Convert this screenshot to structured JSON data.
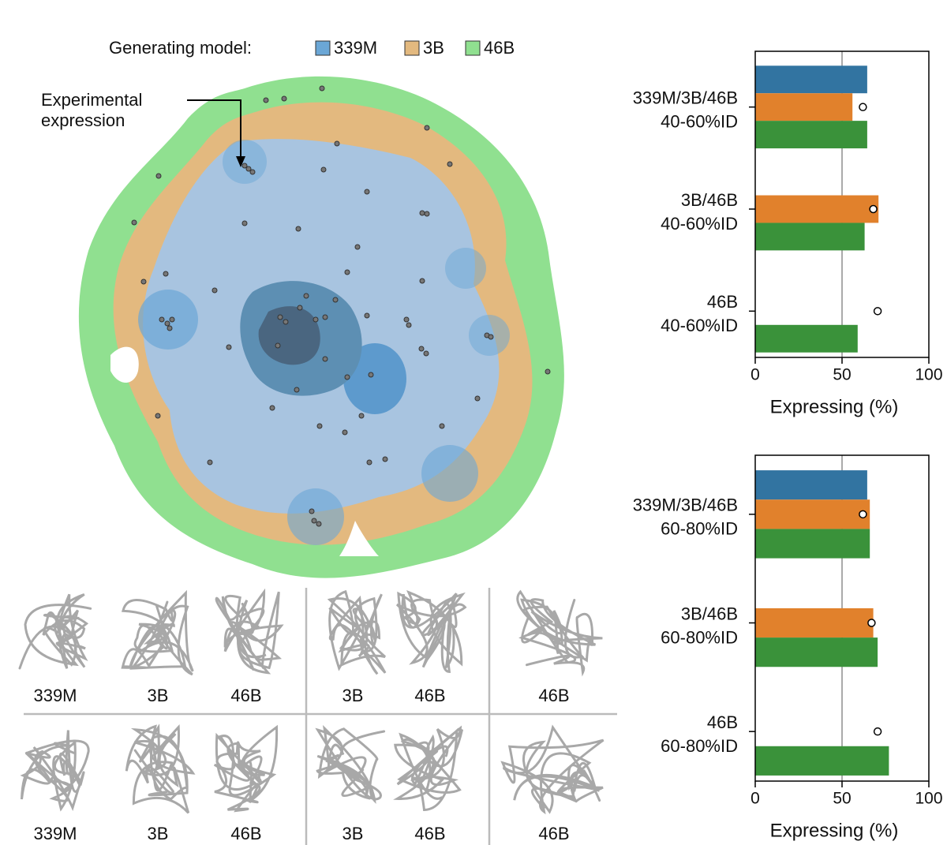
{
  "legend": {
    "title": "Generating model:",
    "items": [
      {
        "label": "339M",
        "color": "#6ba7d6"
      },
      {
        "label": "3B",
        "color": "#e3b97f"
      },
      {
        "label": "46B",
        "color": "#90e090"
      }
    ]
  },
  "density_map": {
    "annotation": [
      "Experimental",
      "expression"
    ]
  },
  "structures": {
    "rows": [
      [
        [
          "339M",
          "3B",
          "46B"
        ],
        [
          "3B",
          "46B"
        ],
        [
          "46B"
        ]
      ],
      [
        [
          "339M",
          "3B",
          "46B"
        ],
        [
          "3B",
          "46B"
        ],
        [
          "46B"
        ]
      ]
    ]
  },
  "chart_data": [
    {
      "type": "hbar",
      "xlabel": "Expressing (%)",
      "categories": [
        [
          "339M/3B/46B",
          "40-60%ID"
        ],
        [
          "3B/46B",
          "40-60%ID"
        ],
        [
          "46B",
          "40-60%ID"
        ]
      ],
      "series": [
        {
          "color": "#3274a1",
          "values": [
            64.5,
            null,
            null
          ]
        },
        {
          "color": "#e1812c",
          "values": [
            56,
            71,
            null
          ]
        },
        {
          "color": "#3a923a",
          "values": [
            64.5,
            63,
            59
          ]
        }
      ],
      "markers": [
        62,
        68,
        70.5
      ],
      "refline": 50,
      "xlim": [
        0,
        100
      ],
      "xticks": [
        0,
        50,
        100
      ]
    },
    {
      "type": "hbar",
      "xlabel": "Expressing (%)",
      "categories": [
        [
          "339M/3B/46B",
          "60-80%ID"
        ],
        [
          "3B/46B",
          "60-80%ID"
        ],
        [
          "46B",
          "60-80%ID"
        ]
      ],
      "series": [
        {
          "color": "#3274a1",
          "values": [
            64.5,
            null,
            null
          ]
        },
        {
          "color": "#e1812c",
          "values": [
            66,
            68,
            null
          ]
        },
        {
          "color": "#3a923a",
          "values": [
            66,
            70.5,
            77
          ]
        }
      ],
      "markers": [
        62,
        67,
        70.5
      ],
      "refline": 50,
      "xlim": [
        0,
        100
      ],
      "xticks": [
        0,
        50,
        100
      ]
    }
  ]
}
